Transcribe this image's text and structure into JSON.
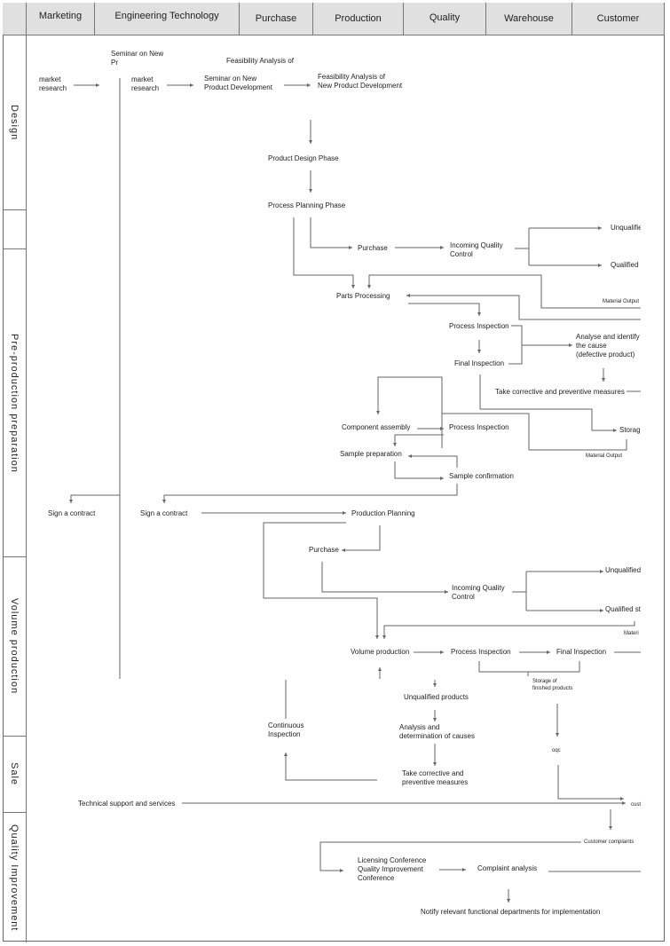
{
  "columns": [
    "Marketing",
    "Engineering Technology",
    "Purchase",
    "Production",
    "Quality",
    "Warehouse",
    "Customer"
  ],
  "rows": [
    "Design",
    "",
    "Pre-production preparation",
    "Volume production",
    "Sale",
    "Quality Improvement"
  ],
  "nodes": {
    "market_research_1": "market\nresearch",
    "seminar_clipped": "Seminar on New\nPr",
    "market_research_2": "market\nresearch",
    "seminar_product": "Seminar on New\nProduct Development",
    "feasibility_overlap": "Feasibility Analysis of",
    "feasibility": "Feasibility Analysis of\nNew Product Development",
    "product_design": "Product Design Phase",
    "process_planning": "Process Planning Phase",
    "purchase_1": "Purchase",
    "iqc_1": "Incoming Quality\nControl",
    "unqualified_1": "Unqualified",
    "qualified_1": "Qualified",
    "material_output_1": "Material Output",
    "parts_processing": "Parts Processing",
    "process_inspection_1": "Process Inspection",
    "final_inspection_1": "Final Inspection",
    "analyse_cause": "Analyse and identify\nthe cause\n(defective product)",
    "corrective_1": "Take corrective and preventive measures",
    "storage_1": "Storage",
    "material_output_2": "Material Output",
    "component_assembly": "Component assembly",
    "process_inspection_2": "Process Inspection",
    "sample_preparation": "Sample preparation",
    "sample_confirmation": "Sample confirmation",
    "sign_contract_1": "Sign a contract",
    "sign_contract_2": "Sign a contract",
    "production_planning": "Production Planning",
    "purchase_2": "Purchase",
    "iqc_2": "Incoming Quality\nControl",
    "unqualified_2": "Unqualified",
    "qualified_2": "Qualified st",
    "material_3": "Materi",
    "volume_production": "Volume production",
    "process_inspection_3": "Process Inspection",
    "final_inspection_3": "Final Inspection",
    "storage_finished": "Storage of\nfinished products",
    "continuous_inspection": "Continuous\nInspection",
    "unqualified_products": "Unqualified products",
    "analysis_causes": "Analysis and\ndetermination of causes",
    "corrective_2": "Take corrective and\npreventive measures",
    "oqc": "oqc",
    "technical_support": "Technical support and services",
    "customer": "customer",
    "customer_complaints": "Customer complaints",
    "licensing_conference": "Licensing Conference\nQuality Improvement\nConference",
    "complaint_analysis": "Complaint analysis",
    "notify": "Notify relevant functional departments for implementation"
  },
  "colors": {
    "header_bg": "#e0e0e0",
    "line": "#666666",
    "text": "#222222"
  }
}
